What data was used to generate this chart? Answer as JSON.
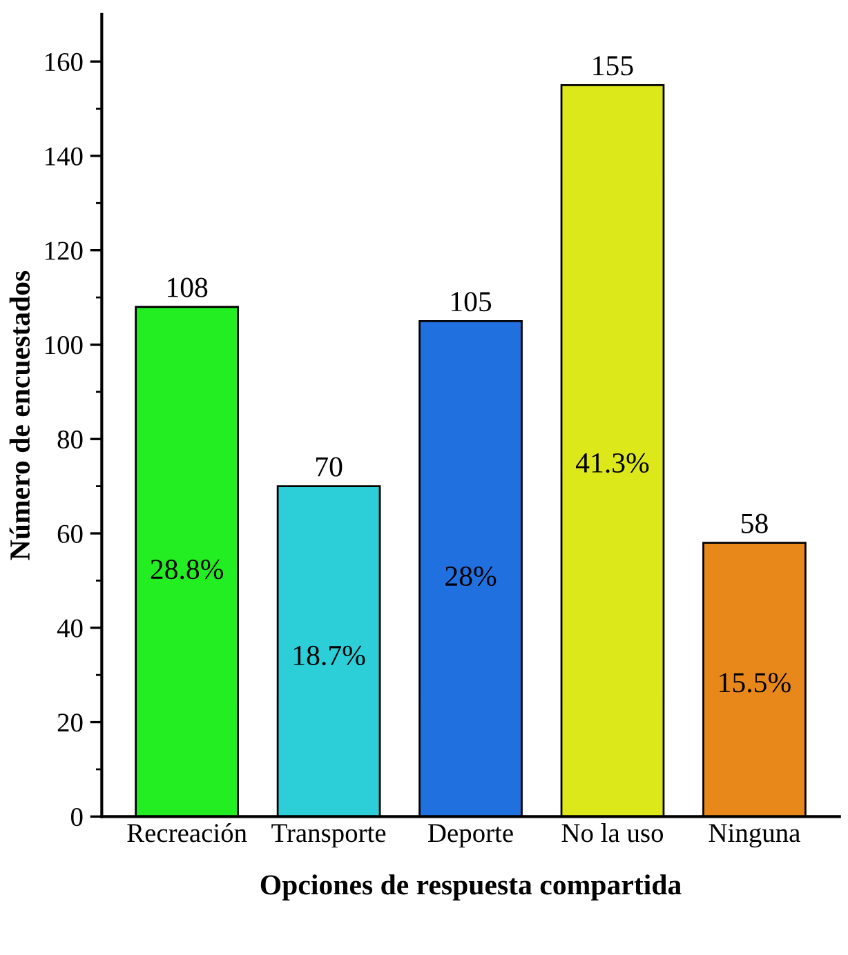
{
  "chart_data": {
    "type": "bar",
    "xlabel": "Opciones de respuesta compartida",
    "ylabel": "Número de encuestados",
    "categories": [
      "Recreación",
      "Transporte",
      "Deporte",
      "No la uso",
      "Ninguna"
    ],
    "values": [
      108,
      70,
      105,
      155,
      58
    ],
    "colors": [
      "#22ee22",
      "#2ccfd8",
      "#2070e0",
      "#dde81a",
      "#e8881a"
    ],
    "data_labels": true,
    "ylim": [
      0,
      170
    ],
    "yticks": [
      0,
      {
        "value": 10,
        "label": null
      },
      20,
      {
        "value": 30,
        "label": null
      },
      40,
      {
        "value": 50,
        "label": null
      },
      60,
      {
        "value": 70,
        "label": null
      },
      80,
      {
        "value": 90,
        "label": null
      },
      100,
      {
        "value": 110,
        "label": null
      },
      120,
      {
        "value": 130,
        "label": null
      },
      140,
      {
        "value": 150,
        "label": null
      },
      160
    ],
    "annotations": [
      "28.8%",
      "18.7%",
      "28%",
      "41.3%",
      "15.5%"
    ],
    "grid": false,
    "legend": false
  }
}
